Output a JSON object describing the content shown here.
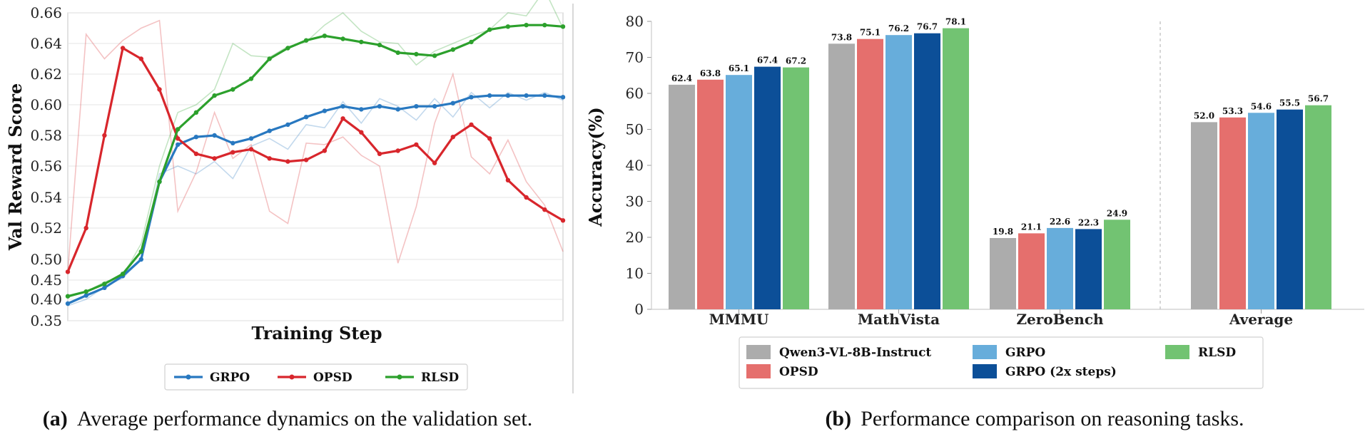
{
  "chart_data": [
    {
      "type": "line",
      "xlabel": "Training Step",
      "ylabel": "Val Reward Score",
      "yticks": [
        "0.35",
        "0.40",
        "0.45",
        "0.50",
        "0.52",
        "0.54",
        "0.56",
        "0.58",
        "0.60",
        "0.62",
        "0.64",
        "0.66"
      ],
      "ylim": [
        0.35,
        0.66
      ],
      "grid": true,
      "legend_position": "bottom-center",
      "caption_label": "(a)",
      "caption_text": "Average performance dynamics on the validation set.",
      "x": [
        0,
        1,
        2,
        3,
        4,
        5,
        6,
        7,
        8,
        9,
        10,
        11,
        12,
        13,
        14,
        15,
        16,
        17,
        18,
        19,
        20,
        21,
        22,
        23,
        24,
        25,
        26,
        27
      ],
      "series": [
        {
          "name": "GRPO",
          "color": "#2878c0",
          "smoothed": [
            0.39,
            0.41,
            0.43,
            0.46,
            0.5,
            0.55,
            0.574,
            0.579,
            0.58,
            0.575,
            0.578,
            0.583,
            0.587,
            0.592,
            0.596,
            0.599,
            0.597,
            0.599,
            0.597,
            0.599,
            0.599,
            0.601,
            0.605,
            0.606,
            0.606,
            0.606,
            0.606,
            0.605
          ],
          "raw": [
            0.385,
            0.4,
            0.432,
            0.455,
            0.5,
            0.555,
            0.56,
            0.555,
            0.563,
            0.552,
            0.573,
            0.578,
            0.571,
            0.587,
            0.585,
            0.602,
            0.588,
            0.604,
            0.599,
            0.59,
            0.604,
            0.592,
            0.608,
            0.598,
            0.608,
            0.603,
            0.608,
            0.603
          ]
        },
        {
          "name": "OPSD",
          "color": "#d8262c",
          "smoothed": [
            0.47,
            0.52,
            0.58,
            0.637,
            0.63,
            0.61,
            0.578,
            0.568,
            0.565,
            0.569,
            0.571,
            0.565,
            0.563,
            0.564,
            0.57,
            0.591,
            0.582,
            0.568,
            0.57,
            0.574,
            0.562,
            0.579,
            0.587,
            0.578,
            0.551,
            0.54,
            0.532,
            0.525
          ],
          "raw": [
            0.47,
            0.646,
            0.63,
            0.642,
            0.65,
            0.655,
            0.531,
            0.556,
            0.595,
            0.565,
            0.574,
            0.531,
            0.523,
            0.575,
            0.574,
            0.579,
            0.567,
            0.56,
            0.491,
            0.534,
            0.588,
            0.62,
            0.566,
            0.555,
            0.577,
            0.55,
            0.535,
            0.505
          ]
        },
        {
          "name": "RLSD",
          "color": "#2ca02c",
          "smoothed": [
            0.408,
            0.42,
            0.44,
            0.465,
            0.505,
            0.55,
            0.584,
            0.595,
            0.606,
            0.61,
            0.617,
            0.63,
            0.637,
            0.642,
            0.645,
            0.643,
            0.641,
            0.639,
            0.634,
            0.633,
            0.632,
            0.636,
            0.641,
            0.649,
            0.651,
            0.652,
            0.652,
            0.651
          ],
          "raw": [
            0.405,
            0.42,
            0.445,
            0.46,
            0.51,
            0.56,
            0.595,
            0.6,
            0.61,
            0.64,
            0.632,
            0.631,
            0.638,
            0.641,
            0.652,
            0.66,
            0.648,
            0.641,
            0.64,
            0.626,
            0.635,
            0.64,
            0.645,
            0.649,
            0.66,
            0.658,
            0.675,
            0.65
          ]
        }
      ]
    },
    {
      "type": "bar",
      "xlabel": "",
      "ylabel": "Accuracy(%)",
      "ylim": [
        0,
        80
      ],
      "yticks": [
        "0",
        "10",
        "20",
        "30",
        "40",
        "50",
        "60",
        "70",
        "80"
      ],
      "grid": false,
      "legend_position": "bottom-center",
      "caption_label": "(b)",
      "caption_text": "Performance comparison on reasoning tasks.",
      "categories": [
        "MMMU",
        "MathVista",
        "ZeroBench",
        "Average"
      ],
      "series": [
        {
          "name": "Qwen3-VL-8B-Instruct",
          "color": "#acacac",
          "values": [
            62.4,
            73.8,
            19.8,
            52.0
          ],
          "labels": [
            "62.4",
            "73.8",
            "19.8",
            "52.0"
          ]
        },
        {
          "name": "OPSD",
          "color": "#e56f6d",
          "values": [
            63.8,
            75.1,
            21.1,
            53.3
          ],
          "labels": [
            "63.8",
            "75.1",
            "21.1",
            "53.3"
          ]
        },
        {
          "name": "GRPO",
          "color": "#67addb",
          "values": [
            65.1,
            76.2,
            22.6,
            54.6
          ],
          "labels": [
            "65.1",
            "76.2",
            "22.6",
            "54.6"
          ]
        },
        {
          "name": "GRPO (2x steps)",
          "color": "#0c4f98",
          "values": [
            67.4,
            76.7,
            22.3,
            55.5
          ],
          "labels": [
            "67.4",
            "76.7",
            "22.3",
            "55.5"
          ]
        },
        {
          "name": "RLSD",
          "color": "#72c372",
          "values": [
            67.2,
            78.1,
            24.9,
            56.7
          ],
          "labels": [
            "67.2",
            "78.1",
            "24.9",
            "56.7"
          ]
        }
      ]
    }
  ]
}
